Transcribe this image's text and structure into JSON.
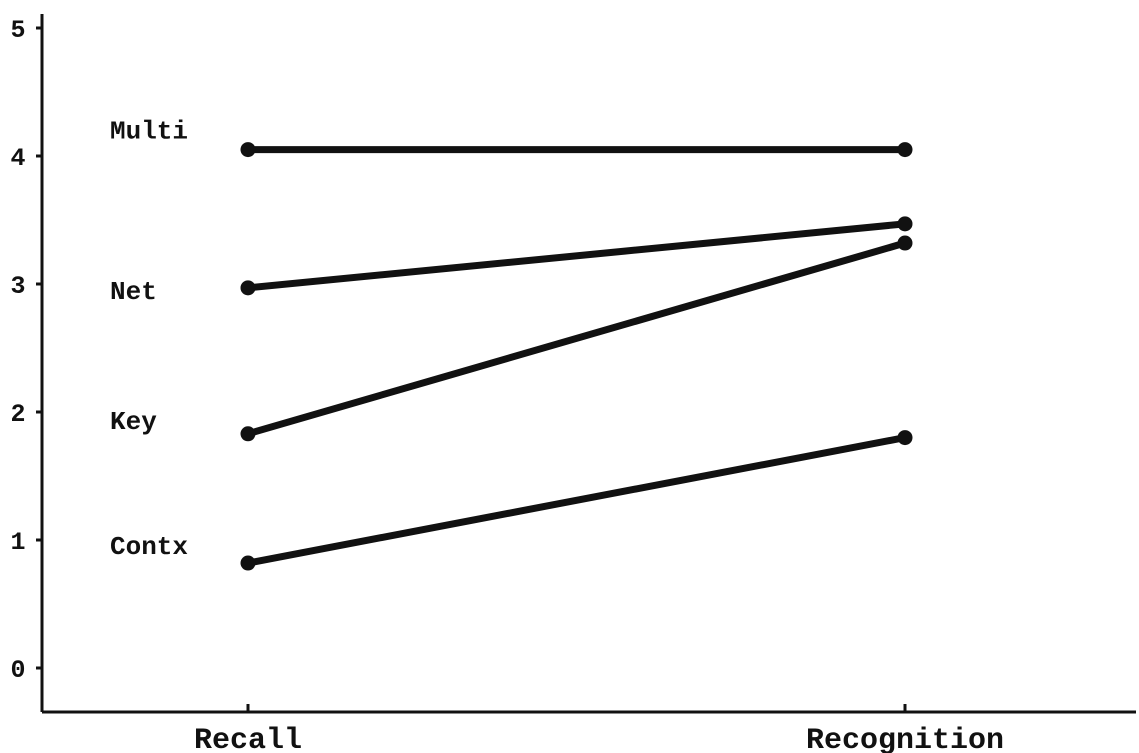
{
  "chart_data": {
    "type": "line",
    "categories": [
      "Recall",
      "Recognition"
    ],
    "ylim": [
      0,
      5
    ],
    "yticks": [
      "0",
      "1",
      "2",
      "3",
      "4",
      "5"
    ],
    "grid": false,
    "legend": "none",
    "series": [
      {
        "name": "Multi",
        "values": [
          4.05,
          4.05
        ]
      },
      {
        "name": "Net",
        "values": [
          2.97,
          3.47
        ]
      },
      {
        "name": "Key",
        "values": [
          1.83,
          3.32
        ]
      },
      {
        "name": "Contx",
        "values": [
          0.82,
          1.8
        ]
      }
    ],
    "line_color": "#111111"
  }
}
